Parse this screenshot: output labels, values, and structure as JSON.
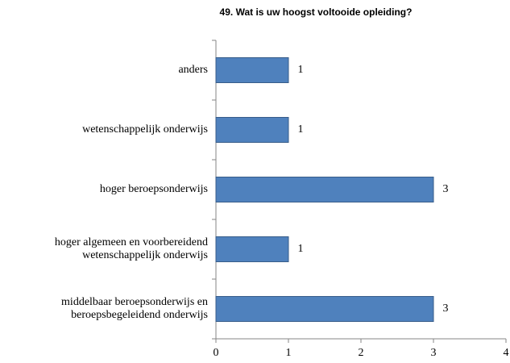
{
  "chart_data": {
    "type": "bar",
    "orientation": "horizontal",
    "title": "49. Wat is uw hoogst voltooide opleiding?",
    "categories": [
      "anders",
      "wetenschappelijk onderwijs",
      "hoger beroepsonderwijs",
      "hoger algemeen en voorbereidend wetenschappelijk onderwijs",
      "middelbaar beroepsonderwijs en beroepsbegeleidend onderwijs"
    ],
    "values": [
      1,
      1,
      3,
      1,
      3
    ],
    "color": "#4f81bd",
    "xlim": [
      0,
      4
    ],
    "xticks": [
      0,
      1,
      2,
      3,
      4
    ],
    "grid": false
  }
}
